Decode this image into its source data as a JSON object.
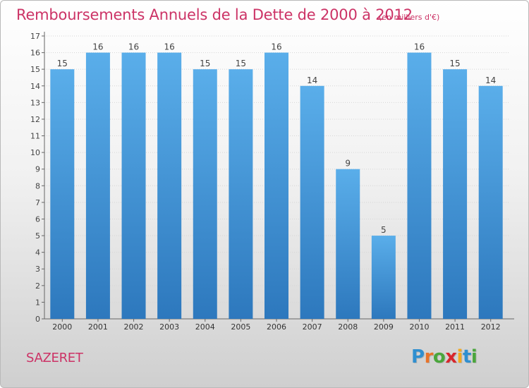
{
  "header": {
    "title": "Remboursements Annuels de la Dette de 2000 à 2012",
    "subtitle": "(en milliers d'€)"
  },
  "footer": {
    "commune": "SAZERET",
    "logo": {
      "letters": [
        "P",
        "r",
        "o",
        "x",
        "i",
        "t",
        "i"
      ],
      "colors": [
        "#2f8fd0",
        "#e8742a",
        "#4aa63c",
        "#d8262c",
        "#f3a81f",
        "#2f8fd0",
        "#4aa63c"
      ]
    }
  },
  "chart_data": {
    "type": "bar",
    "categories": [
      "2000",
      "2001",
      "2002",
      "2003",
      "2004",
      "2005",
      "2006",
      "2007",
      "2008",
      "2009",
      "2010",
      "2011",
      "2012"
    ],
    "values": [
      15,
      16,
      16,
      16,
      15,
      15,
      16,
      14,
      9,
      5,
      16,
      15,
      14
    ],
    "ylim": [
      0,
      17
    ],
    "yticks": [
      0,
      1,
      2,
      3,
      4,
      5,
      6,
      7,
      8,
      9,
      10,
      11,
      12,
      13,
      14,
      15,
      16,
      17
    ],
    "grid": true,
    "bar_color": "#4a9ee2",
    "bar_color_dark": "#2f7cc4"
  }
}
